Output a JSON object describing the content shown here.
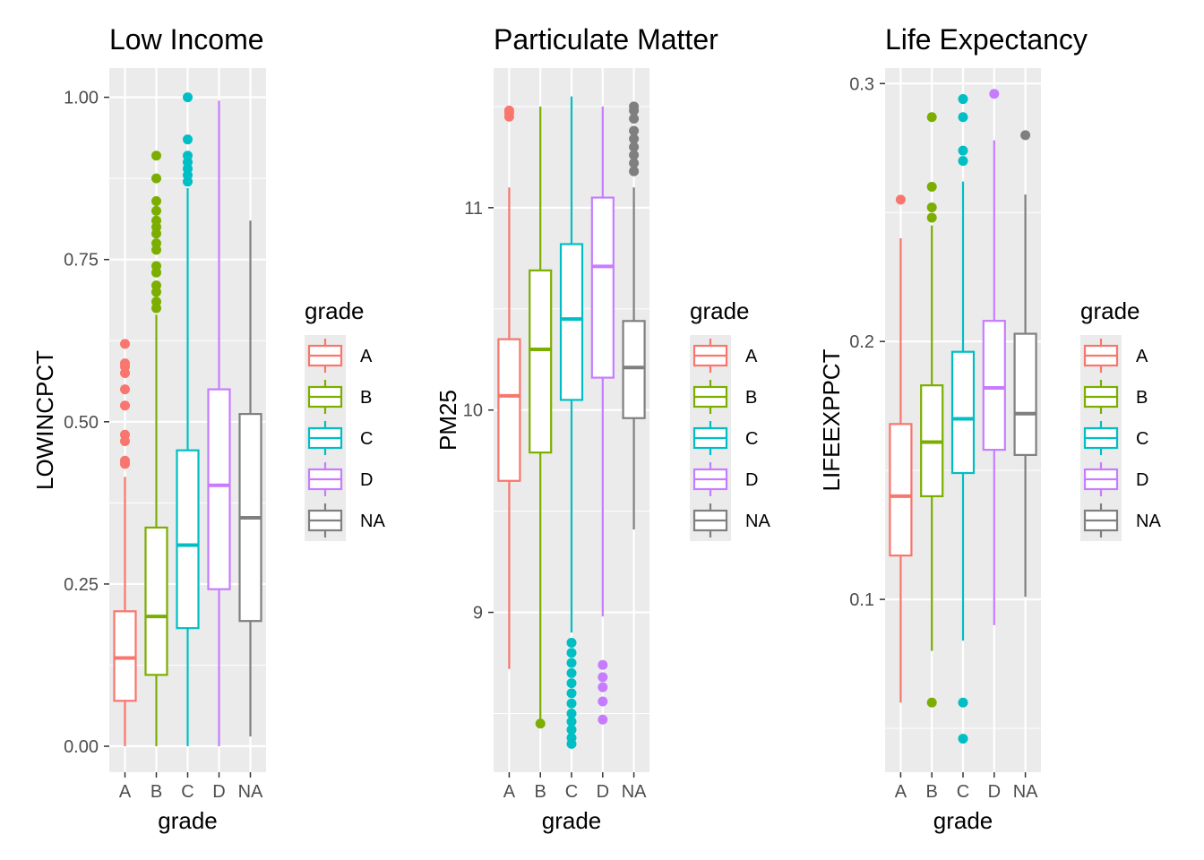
{
  "chart_data": [
    {
      "type": "boxplot",
      "title": "Low Income",
      "xlabel": "grade",
      "ylabel": "LOWINCPCT",
      "categories": [
        "A",
        "B",
        "C",
        "D",
        "NA"
      ],
      "ylim": [
        -0.04,
        1.045
      ],
      "yticks": [
        0.0,
        0.25,
        0.5,
        0.75,
        1.0
      ],
      "ytick_labels": [
        "0.00",
        "0.25",
        "0.50",
        "0.75",
        "1.00"
      ],
      "boxes": [
        {
          "category": "A",
          "whisker_low": 0.0,
          "q1": 0.07,
          "median": 0.136,
          "q3": 0.208,
          "whisker_high": 0.415,
          "outliers": [
            0.435,
            0.44,
            0.47,
            0.48,
            0.525,
            0.55,
            0.575,
            0.585,
            0.59,
            0.62
          ]
        },
        {
          "category": "B",
          "whisker_low": 0.0,
          "q1": 0.11,
          "median": 0.2,
          "q3": 0.337,
          "whisker_high": 0.665,
          "outliers": [
            0.675,
            0.685,
            0.7,
            0.71,
            0.73,
            0.74,
            0.765,
            0.775,
            0.79,
            0.8,
            0.81,
            0.825,
            0.84,
            0.875,
            0.91
          ]
        },
        {
          "category": "C",
          "whisker_low": 0.0,
          "q1": 0.182,
          "median": 0.31,
          "q3": 0.456,
          "whisker_high": 0.86,
          "outliers": [
            0.87,
            0.88,
            0.89,
            0.9,
            0.91,
            0.935,
            1.0
          ]
        },
        {
          "category": "D",
          "whisker_low": 0.0,
          "q1": 0.242,
          "median": 0.402,
          "q3": 0.55,
          "whisker_high": 0.995,
          "outliers": []
        },
        {
          "category": "NA",
          "whisker_low": 0.015,
          "q1": 0.193,
          "median": 0.352,
          "q3": 0.512,
          "whisker_high": 0.81,
          "outliers": []
        }
      ]
    },
    {
      "type": "boxplot",
      "title": "Particulate Matter",
      "xlabel": "grade",
      "ylabel": "PM25",
      "categories": [
        "A",
        "B",
        "C",
        "D",
        "NA"
      ],
      "ylim": [
        8.21,
        11.69
      ],
      "yticks": [
        9,
        10,
        11
      ],
      "ytick_labels": [
        "9",
        "10",
        "11"
      ],
      "boxes": [
        {
          "category": "A",
          "whisker_low": 8.72,
          "q1": 9.65,
          "median": 10.07,
          "q3": 10.35,
          "whisker_high": 11.1,
          "outliers": [
            11.45,
            11.47,
            11.48
          ]
        },
        {
          "category": "B",
          "whisker_low": 8.46,
          "q1": 9.79,
          "median": 10.3,
          "q3": 10.69,
          "whisker_high": 11.5,
          "outliers": [
            8.45
          ]
        },
        {
          "category": "C",
          "whisker_low": 8.9,
          "q1": 10.05,
          "median": 10.45,
          "q3": 10.82,
          "whisker_high": 11.55,
          "outliers": [
            8.35,
            8.38,
            8.42,
            8.46,
            8.5,
            8.55,
            8.6,
            8.65,
            8.7,
            8.75,
            8.8,
            8.85
          ]
        },
        {
          "category": "D",
          "whisker_low": 8.98,
          "q1": 10.16,
          "median": 10.71,
          "q3": 11.05,
          "whisker_high": 11.5,
          "outliers": [
            8.47,
            8.56,
            8.63,
            8.68,
            8.74
          ]
        },
        {
          "category": "NA",
          "whisker_low": 9.41,
          "q1": 9.96,
          "median": 10.21,
          "q3": 10.44,
          "whisker_high": 11.1,
          "outliers": [
            11.18,
            11.22,
            11.26,
            11.3,
            11.34,
            11.38,
            11.44,
            11.48,
            11.5
          ]
        }
      ]
    },
    {
      "type": "boxplot",
      "title": "Life Expectancy",
      "xlabel": "grade",
      "ylabel": "LIFEEXPPCT",
      "categories": [
        "A",
        "B",
        "C",
        "D",
        "NA"
      ],
      "ylim": [
        0.033,
        0.306
      ],
      "yticks": [
        0.1,
        0.2,
        0.3
      ],
      "ytick_labels": [
        "0.1",
        "0.2",
        "0.3"
      ],
      "boxes": [
        {
          "category": "A",
          "whisker_low": 0.06,
          "q1": 0.117,
          "median": 0.14,
          "q3": 0.168,
          "whisker_high": 0.24,
          "outliers": [
            0.255
          ]
        },
        {
          "category": "B",
          "whisker_low": 0.08,
          "q1": 0.14,
          "median": 0.161,
          "q3": 0.183,
          "whisker_high": 0.245,
          "outliers": [
            0.06,
            0.248,
            0.252,
            0.26,
            0.287
          ]
        },
        {
          "category": "C",
          "whisker_low": 0.084,
          "q1": 0.149,
          "median": 0.17,
          "q3": 0.196,
          "whisker_high": 0.262,
          "outliers": [
            0.046,
            0.06,
            0.27,
            0.274,
            0.287,
            0.294
          ]
        },
        {
          "category": "D",
          "whisker_low": 0.09,
          "q1": 0.158,
          "median": 0.182,
          "q3": 0.208,
          "whisker_high": 0.278,
          "outliers": [
            0.296
          ]
        },
        {
          "category": "NA",
          "whisker_low": 0.101,
          "q1": 0.156,
          "median": 0.172,
          "q3": 0.203,
          "whisker_high": 0.257,
          "outliers": [
            0.28
          ]
        }
      ]
    }
  ],
  "legend": {
    "title": "grade",
    "items": [
      "A",
      "B",
      "C",
      "D",
      "NA"
    ]
  },
  "colors": {
    "A": "#F8766D",
    "B": "#7CAE00",
    "C": "#00BFC4",
    "D": "#C77CFF",
    "NA": "#7F7F7F",
    "panel_background": "#EBEBEB",
    "grid": "#FFFFFF"
  }
}
